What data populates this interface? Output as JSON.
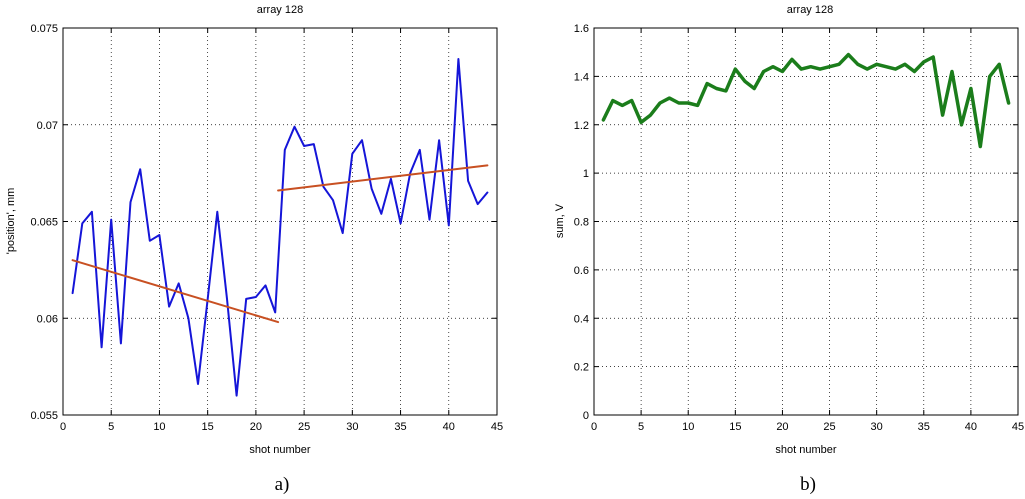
{
  "chart_data": [
    {
      "type": "line",
      "panel_caption": "a)",
      "title": "array 128",
      "xlabel": "shot number",
      "ylabel": "'position',  mm",
      "xlim": [
        0,
        45
      ],
      "ylim": [
        0.055,
        0.075
      ],
      "xticks": [
        0,
        5,
        10,
        15,
        20,
        25,
        30,
        35,
        40,
        45
      ],
      "yticks": [
        0.055,
        0.06,
        0.065,
        0.07,
        0.075
      ],
      "xtick_labels": [
        "0",
        "5",
        "10",
        "15",
        "20",
        "25",
        "30",
        "35",
        "40",
        "45"
      ],
      "ytick_labels": [
        "0.055",
        "0.06",
        "0.065",
        "0.07",
        "0.075"
      ],
      "grid": true,
      "series": [
        {
          "color": "#1515d8",
          "line_width": 2,
          "x": [
            1,
            2,
            3,
            4,
            5,
            6,
            7,
            8,
            9,
            10,
            11,
            12,
            13,
            14,
            15,
            16,
            17,
            18,
            19,
            20,
            21,
            22,
            23,
            24,
            25,
            26,
            27,
            28,
            29,
            30,
            31,
            32,
            33,
            34,
            35,
            36,
            37,
            38,
            39,
            40,
            41,
            42,
            43,
            44
          ],
          "y": [
            0.0613,
            0.0649,
            0.0655,
            0.0585,
            0.0651,
            0.0587,
            0.066,
            0.0677,
            0.064,
            0.0643,
            0.0606,
            0.0618,
            0.06,
            0.0566,
            0.061,
            0.0655,
            0.061,
            0.056,
            0.061,
            0.0611,
            0.0617,
            0.0603,
            0.0687,
            0.0699,
            0.0689,
            0.069,
            0.0668,
            0.0661,
            0.0644,
            0.0685,
            0.0692,
            0.0667,
            0.0654,
            0.0672,
            0.0649,
            0.0675,
            0.0687,
            0.0651,
            0.0692,
            0.0648,
            0.0734,
            0.0671,
            0.0659,
            0.0665
          ]
        },
        {
          "color": "#c85022",
          "line_width": 2,
          "x": [
            1,
            22.3
          ],
          "y": [
            0.063,
            0.0598
          ]
        },
        {
          "color": "#c85022",
          "line_width": 2,
          "x": [
            22.3,
            44
          ],
          "y": [
            0.0666,
            0.0679
          ]
        }
      ]
    },
    {
      "type": "line",
      "panel_caption": "b)",
      "title": "array 128",
      "xlabel": "shot number",
      "ylabel": "sum,  V",
      "xlim": [
        0,
        45
      ],
      "ylim": [
        0,
        1.6
      ],
      "xticks": [
        0,
        5,
        10,
        15,
        20,
        25,
        30,
        35,
        40,
        45
      ],
      "yticks": [
        0,
        0.2,
        0.4,
        0.6,
        0.8,
        1,
        1.2,
        1.4,
        1.6
      ],
      "xtick_labels": [
        "0",
        "5",
        "10",
        "15",
        "20",
        "25",
        "30",
        "35",
        "40",
        "45"
      ],
      "ytick_labels": [
        "0",
        "0.2",
        "0.4",
        "0.6",
        "0.8",
        "1",
        "1.2",
        "1.4",
        "1.6"
      ],
      "grid": true,
      "series": [
        {
          "color": "#1b7d1b",
          "line_width": 3.5,
          "x": [
            1,
            2,
            3,
            4,
            5,
            6,
            7,
            8,
            9,
            10,
            11,
            12,
            13,
            14,
            15,
            16,
            17,
            18,
            19,
            20,
            21,
            22,
            23,
            24,
            25,
            26,
            27,
            28,
            29,
            30,
            31,
            32,
            33,
            34,
            35,
            36,
            37,
            38,
            39,
            40,
            41,
            42,
            43,
            44
          ],
          "y": [
            1.22,
            1.3,
            1.28,
            1.3,
            1.21,
            1.24,
            1.29,
            1.31,
            1.29,
            1.29,
            1.28,
            1.37,
            1.35,
            1.34,
            1.43,
            1.38,
            1.35,
            1.42,
            1.44,
            1.42,
            1.47,
            1.43,
            1.44,
            1.43,
            1.44,
            1.45,
            1.49,
            1.45,
            1.43,
            1.45,
            1.44,
            1.43,
            1.45,
            1.42,
            1.46,
            1.48,
            1.24,
            1.42,
            1.2,
            1.35,
            1.11,
            1.4,
            1.45,
            1.29
          ]
        }
      ]
    }
  ]
}
